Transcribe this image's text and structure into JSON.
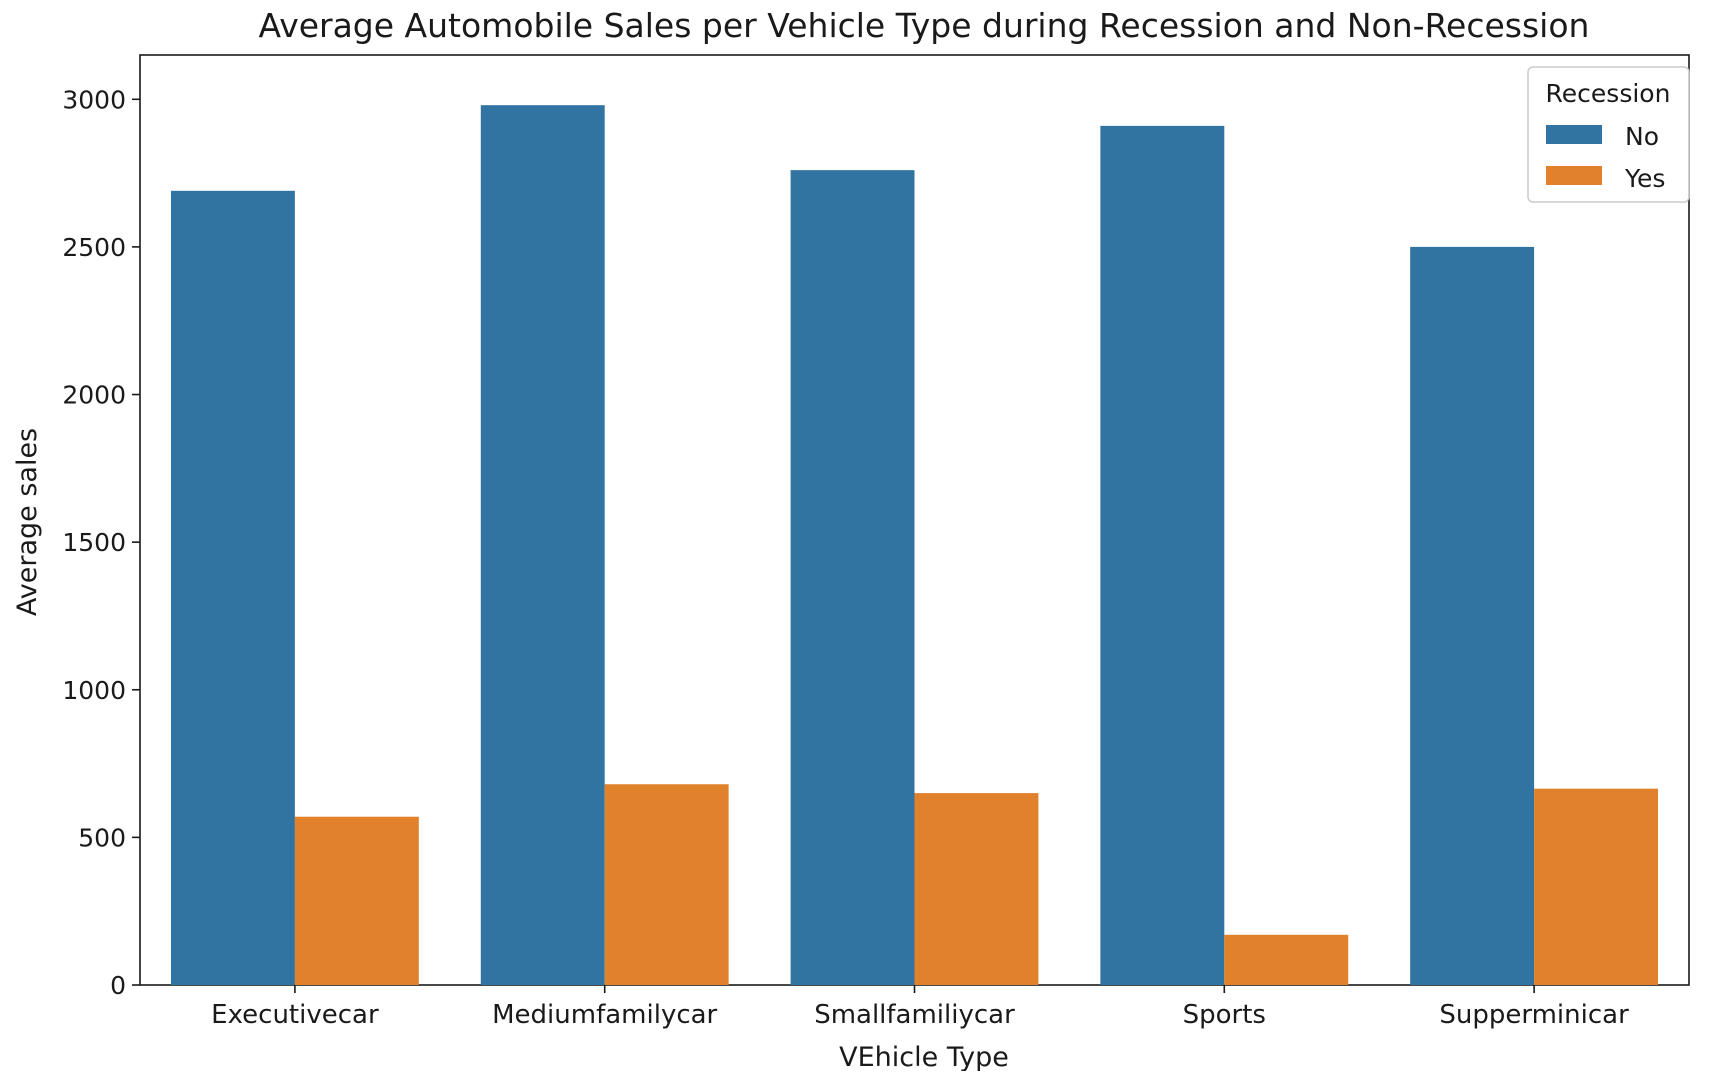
{
  "chart_data": {
    "type": "bar",
    "title": "Average Automobile Sales per Vehicle Type during Recession and Non-Recession",
    "xlabel": "VEhicle Type",
    "ylabel": "Average sales",
    "categories": [
      "Executivecar",
      "Mediumfamilycar",
      "Smallfamiliycar",
      "Sports",
      "Supperminicar"
    ],
    "series": [
      {
        "name": "No",
        "color": "#3274a1",
        "values": [
          2690,
          2980,
          2760,
          2910,
          2500
        ]
      },
      {
        "name": "Yes",
        "color": "#e1812c",
        "values": [
          570,
          680,
          650,
          170,
          665
        ]
      }
    ],
    "ylim": [
      0,
      3150
    ],
    "yticks": [
      0,
      500,
      1000,
      1500,
      2000,
      2500,
      3000
    ],
    "grid": false,
    "legend": {
      "title": "Recession",
      "position": "top-right"
    }
  }
}
